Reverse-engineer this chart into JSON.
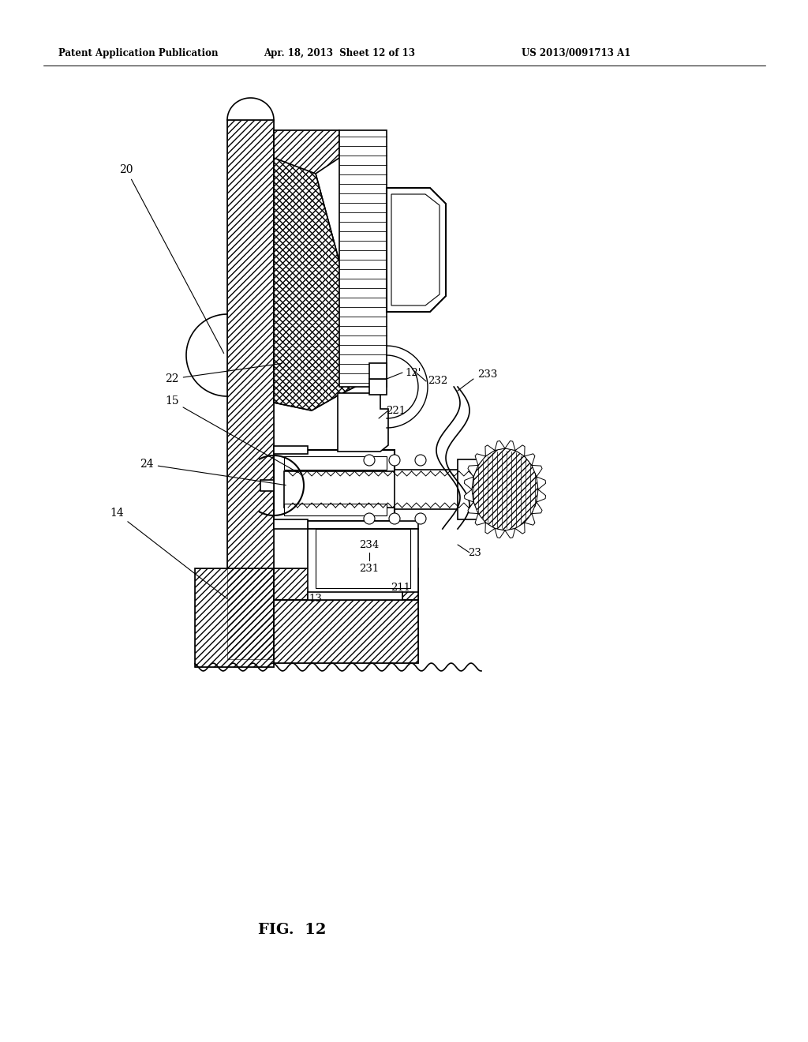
{
  "header_left": "Patent Application Publication",
  "header_mid": "Apr. 18, 2013  Sheet 12 of 13",
  "header_right": "US 2013/0091713 A1",
  "fig_label": "FIG.  12",
  "bg_color": "#ffffff"
}
